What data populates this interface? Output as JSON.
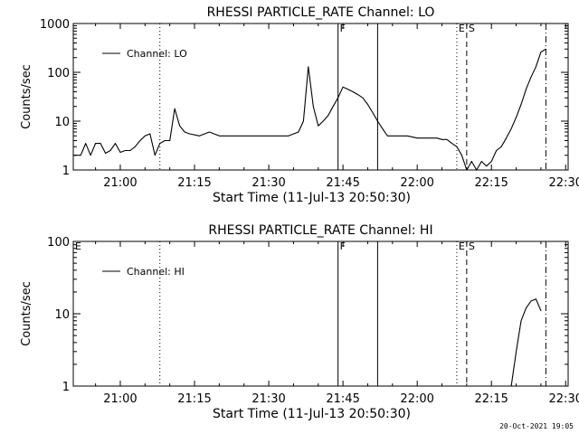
{
  "footer": {
    "timestamp": "20-Oct-2021 19:05"
  },
  "chart_data": [
    {
      "type": "line",
      "title": "RHESSI PARTICLE_RATE Channel: LO",
      "xlabel": "Start Time (11-Jul-13 20:50:30)",
      "ylabel": "Counts/sec",
      "y_scale": "log",
      "ylim": [
        1,
        1000
      ],
      "xlim": [
        "20:50:30",
        "22:30:30"
      ],
      "x_ticks": [
        "21:00",
        "21:15",
        "21:30",
        "21:45",
        "22:00",
        "22:15",
        "22:30"
      ],
      "y_ticks": [
        "1",
        "10",
        "100",
        "1000"
      ],
      "legend": {
        "position": "top-left",
        "entries": [
          "Channel: LO"
        ]
      },
      "markers": [
        {
          "time": "21:08",
          "style": "dotted",
          "label": ""
        },
        {
          "time": "21:44",
          "style": "solid",
          "label": "F"
        },
        {
          "time": "21:52",
          "style": "solid",
          "label": ""
        },
        {
          "time": "22:08",
          "style": "dotted",
          "label": "E"
        },
        {
          "time": "22:10",
          "style": "dashed",
          "label": "S"
        },
        {
          "time": "22:26",
          "style": "dashdot",
          "label": ""
        }
      ],
      "series": [
        {
          "name": "Channel: LO",
          "x": [
            "20:50:30",
            "20:52",
            "20:53",
            "20:54",
            "20:55",
            "20:56",
            "20:57",
            "20:58",
            "20:59",
            "21:00",
            "21:01",
            "21:02",
            "21:03",
            "21:04",
            "21:05",
            "21:06",
            "21:07",
            "21:08",
            "21:09",
            "21:10",
            "21:11",
            "21:12",
            "21:13",
            "21:14",
            "21:16",
            "21:18",
            "21:20",
            "21:22",
            "21:24",
            "21:26",
            "21:28",
            "21:30",
            "21:32",
            "21:34",
            "21:36",
            "21:37",
            "21:38",
            "21:39",
            "21:40",
            "21:41",
            "21:42",
            "21:43",
            "21:44",
            "21:45",
            "21:46",
            "21:47",
            "21:48",
            "21:49",
            "21:50",
            "21:51",
            "21:52",
            "21:53",
            "21:54",
            "21:56",
            "21:58",
            "22:00",
            "22:02",
            "22:04",
            "22:05",
            "22:06",
            "22:07",
            "22:08",
            "22:09",
            "22:10",
            "22:11",
            "22:12",
            "22:13",
            "22:14",
            "22:15",
            "22:16",
            "22:17",
            "22:18",
            "22:19",
            "22:20",
            "22:21",
            "22:22",
            "22:23",
            "22:24",
            "22:25",
            "22:26"
          ],
          "y": [
            2,
            2,
            3.5,
            2,
            3.5,
            3.5,
            2.2,
            2.5,
            3.5,
            2.3,
            2.5,
            2.5,
            3,
            4,
            5,
            5.5,
            2,
            3.5,
            4,
            4,
            18,
            8,
            6,
            5.5,
            5,
            6,
            5,
            5,
            5,
            5,
            5,
            5,
            5,
            5,
            6,
            10,
            130,
            20,
            8,
            10,
            13,
            20,
            30,
            50,
            45,
            40,
            35,
            30,
            22,
            15,
            10,
            7,
            5,
            5,
            5,
            4.5,
            4.5,
            4.5,
            4.2,
            4.2,
            3.5,
            3,
            2,
            1,
            1.5,
            1,
            1.5,
            1.2,
            1.5,
            2.5,
            3,
            4.5,
            7,
            12,
            22,
            45,
            80,
            130,
            260,
            300
          ]
        }
      ]
    },
    {
      "type": "line",
      "title": "RHESSI PARTICLE_RATE Channel: HI",
      "xlabel": "Start Time (11-Jul-13 20:50:30)",
      "ylabel": "Counts/sec",
      "y_scale": "log",
      "ylim": [
        1,
        100
      ],
      "xlim": [
        "20:50:30",
        "22:30:30"
      ],
      "x_ticks": [
        "21:00",
        "21:15",
        "21:30",
        "21:45",
        "22:00",
        "22:15",
        "22:30"
      ],
      "y_ticks": [
        "1",
        "10",
        "100"
      ],
      "legend": {
        "position": "top-left",
        "entries": [
          "Channel: HI"
        ]
      },
      "markers": [
        {
          "time": "20:50:30",
          "style": "none",
          "label": "E"
        },
        {
          "time": "21:08",
          "style": "dotted",
          "label": ""
        },
        {
          "time": "21:44",
          "style": "solid",
          "label": "F"
        },
        {
          "time": "21:52",
          "style": "solid",
          "label": ""
        },
        {
          "time": "22:08",
          "style": "dotted",
          "label": "E"
        },
        {
          "time": "22:10",
          "style": "dashed",
          "label": "S"
        },
        {
          "time": "22:26",
          "style": "dashdot",
          "label": ""
        }
      ],
      "series": [
        {
          "name": "Channel: HI",
          "x": [
            "22:19",
            "22:20",
            "22:21",
            "22:22",
            "22:23",
            "22:24",
            "22:25"
          ],
          "y": [
            1,
            3,
            8,
            12,
            15,
            16,
            11
          ]
        }
      ]
    }
  ]
}
